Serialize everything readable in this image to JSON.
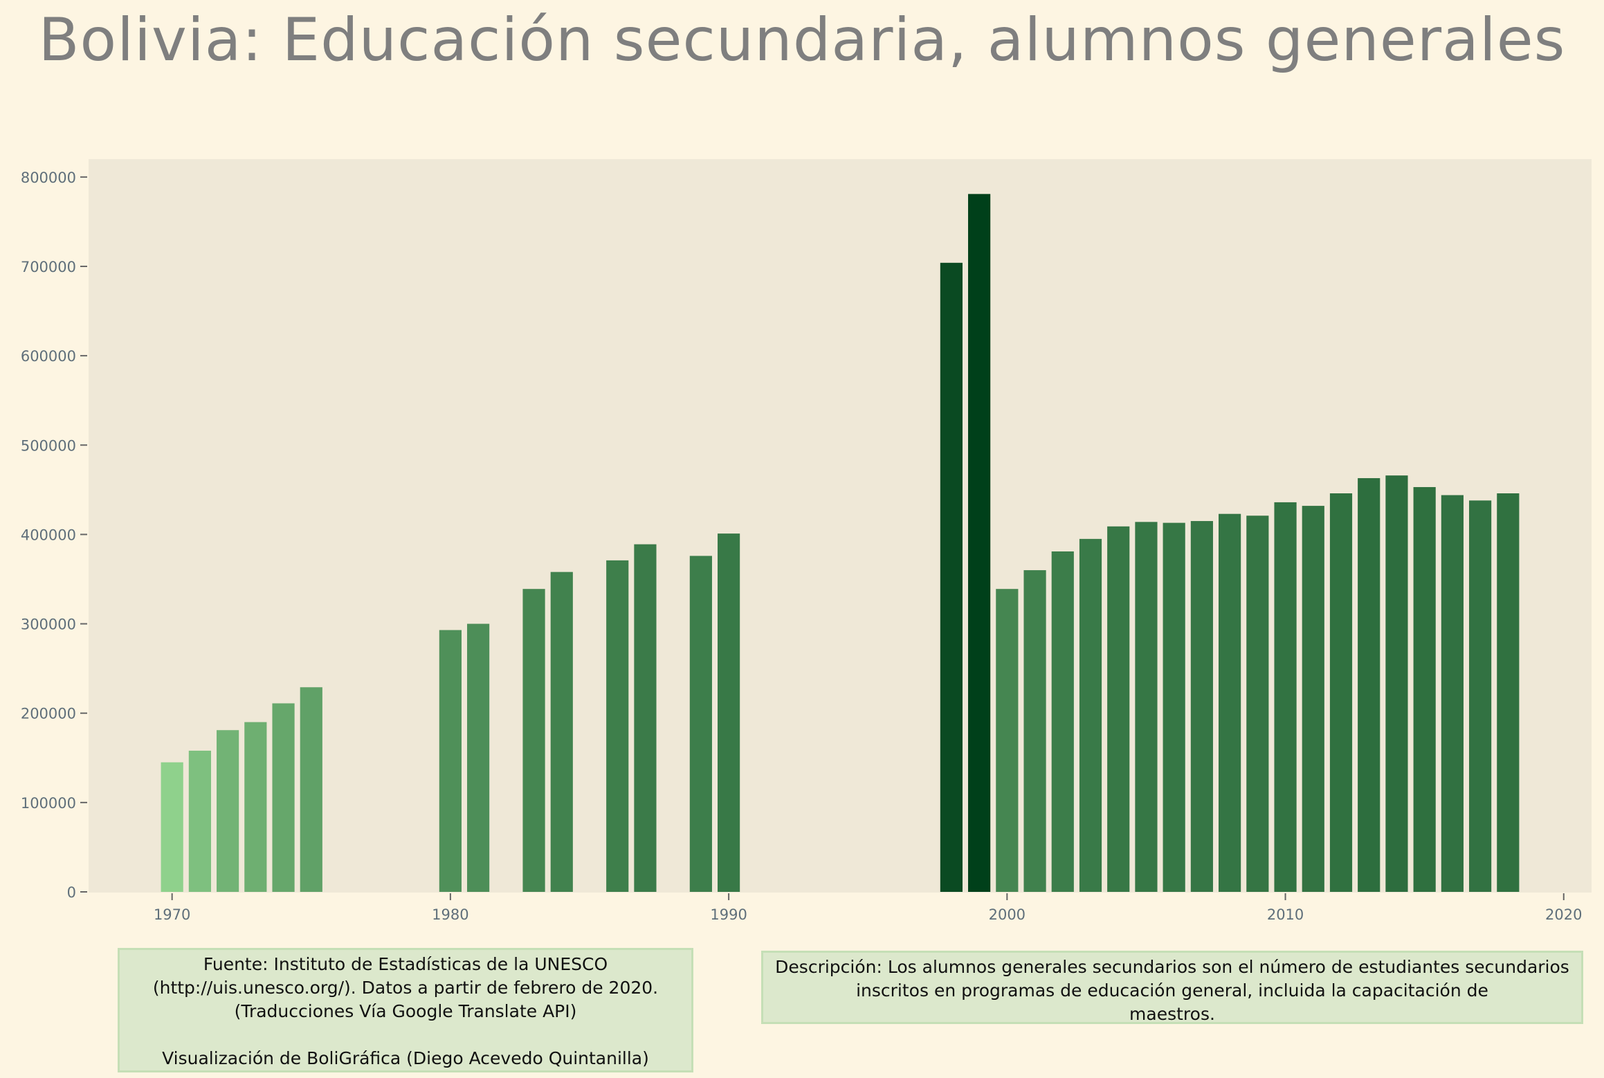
{
  "chart_data": {
    "type": "bar",
    "title": "Bolivia:  Educación secundaria, alumnos generales",
    "xlabel": "",
    "ylabel": "",
    "x_ticks": [
      "1970",
      "1980",
      "1990",
      "2000",
      "2010",
      "2020"
    ],
    "y_ticks": [
      "0",
      "100000",
      "200000",
      "300000",
      "400000",
      "500000",
      "600000",
      "700000",
      "800000"
    ],
    "xlim": [
      1967,
      2021
    ],
    "ylim": [
      0,
      820000
    ],
    "grid": false,
    "color_scale": {
      "low": "#8fd18c",
      "high": "#00401a"
    },
    "series": [
      {
        "x": [
          1970,
          1971,
          1972,
          1973,
          1974,
          1975,
          1980,
          1981,
          1983,
          1984,
          1986,
          1987,
          1989,
          1990,
          1998,
          1999,
          2000,
          2001,
          2002,
          2003,
          2004,
          2005,
          2006,
          2007,
          2008,
          2009,
          2010,
          2011,
          2012,
          2013,
          2014,
          2015,
          2016,
          2017,
          2018
        ],
        "values": [
          145000,
          158000,
          181000,
          190000,
          211000,
          229000,
          293000,
          300000,
          339000,
          358000,
          371000,
          389000,
          376000,
          401000,
          704000,
          781000,
          339000,
          360000,
          381000,
          395000,
          409000,
          414000,
          413000,
          415000,
          423000,
          421000,
          436000,
          432000,
          446000,
          463000,
          466000,
          453000,
          444000,
          438000,
          446000
        ]
      }
    ]
  },
  "source_note": {
    "lines": [
      "Fuente: Instituto de Estadísticas de la UNESCO",
      "(http://uis.unesco.org/). Datos a partir de febrero de 2020.",
      "(Traducciones Vía Google Translate API)",
      "",
      "Visualización de BoliGráfica (Diego Acevedo Quintanilla)"
    ]
  },
  "description_note": {
    "lines": [
      "Descripción: Los alumnos generales secundarios son el número de estudiantes secundarios",
      "inscritos en programas de educación general, incluida la capacitación de",
      "maestros."
    ]
  }
}
